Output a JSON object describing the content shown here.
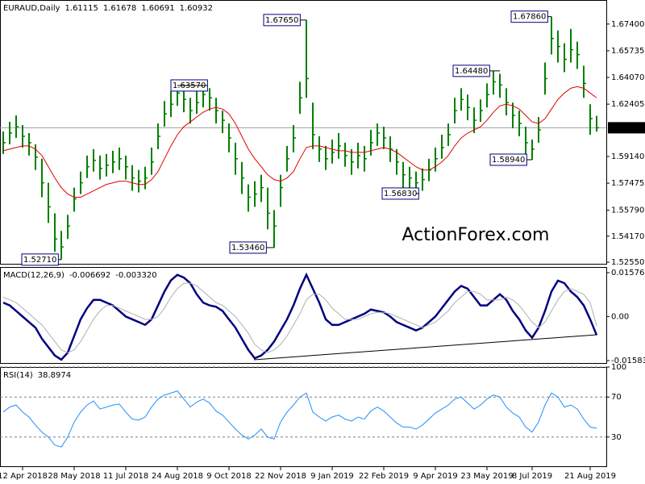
{
  "chart_data": [
    {
      "type": "ohlc",
      "title": "EURAUD,Daily",
      "last_ohlc": [
        1.61115,
        1.61678,
        1.60691,
        1.60932
      ],
      "watermark": "ActionForex.com",
      "color": "#008000",
      "ma_color": "#e00000",
      "ylim": [
        1.524,
        1.689
      ],
      "yticks": [
        {
          "value": 1.674,
          "label": "1.67400"
        },
        {
          "value": 1.65735,
          "label": "1.65735"
        },
        {
          "value": 1.6407,
          "label": "1.64070"
        },
        {
          "value": 1.62405,
          "label": "1.62405"
        },
        {
          "value": 1.5914,
          "label": "1.59140"
        },
        {
          "value": 1.57475,
          "label": "1.57475"
        },
        {
          "value": 1.5579,
          "label": "1.55790"
        },
        {
          "value": 1.5417,
          "label": "1.54170"
        },
        {
          "value": 1.5255,
          "label": "1.52550"
        }
      ],
      "last_price": {
        "value": 1.60932,
        "label": "1.60932"
      },
      "annotations": [
        {
          "value": 1.6765,
          "label": "1.67650"
        },
        {
          "value": 1.6786,
          "label": "1.67860"
        },
        {
          "value": 1.6357,
          "label": "1.63570"
        },
        {
          "value": 1.6448,
          "label": "1.64480"
        },
        {
          "value": 1.5894,
          "label": "1.58940"
        },
        {
          "value": 1.5683,
          "label": "1.56830"
        },
        {
          "value": 1.5346,
          "label": "1.53460"
        },
        {
          "value": 1.5271,
          "label": "1.52710"
        }
      ],
      "high": [
        1.607,
        1.613,
        1.617,
        1.611,
        1.606,
        1.599,
        1.59,
        1.575,
        1.556,
        1.545,
        1.555,
        1.572,
        1.582,
        1.592,
        1.596,
        1.592,
        1.593,
        1.595,
        1.597,
        1.592,
        1.586,
        1.583,
        1.585,
        1.597,
        1.612,
        1.626,
        1.632,
        1.6357,
        1.634,
        1.628,
        1.632,
        1.634,
        1.634,
        1.628,
        1.62,
        1.612,
        1.6,
        1.588,
        1.574,
        1.576,
        1.58,
        1.572,
        1.558,
        1.58,
        1.598,
        1.611,
        1.638,
        1.6765,
        1.625,
        1.604,
        1.598,
        1.602,
        1.606,
        1.6,
        1.596,
        1.6,
        1.598,
        1.608,
        1.612,
        1.61,
        1.604,
        1.596,
        1.588,
        1.585,
        1.582,
        1.584,
        1.59,
        1.597,
        1.605,
        1.612,
        1.628,
        1.634,
        1.63,
        1.622,
        1.627,
        1.637,
        1.6448,
        1.643,
        1.634,
        1.625,
        1.62,
        1.61,
        1.602,
        1.616,
        1.65,
        1.6786,
        1.67,
        1.662,
        1.671,
        1.663,
        1.648,
        1.624,
        1.61678
      ],
      "low": [
        1.593,
        1.599,
        1.603,
        1.597,
        1.592,
        1.583,
        1.566,
        1.55,
        1.532,
        1.5271,
        1.54,
        1.557,
        1.568,
        1.578,
        1.582,
        1.577,
        1.579,
        1.581,
        1.583,
        1.577,
        1.57,
        1.569,
        1.571,
        1.58,
        1.596,
        1.61,
        1.616,
        1.623,
        1.619,
        1.612,
        1.618,
        1.622,
        1.62,
        1.612,
        1.606,
        1.594,
        1.58,
        1.568,
        1.557,
        1.56,
        1.563,
        1.546,
        1.5346,
        1.56,
        1.582,
        1.594,
        1.618,
        1.628,
        1.596,
        1.588,
        1.583,
        1.587,
        1.59,
        1.585,
        1.58,
        1.584,
        1.582,
        1.592,
        1.598,
        1.596,
        1.588,
        1.58,
        1.572,
        1.57,
        1.5683,
        1.57,
        1.576,
        1.582,
        1.59,
        1.598,
        1.612,
        1.62,
        1.614,
        1.606,
        1.613,
        1.622,
        1.63,
        1.628,
        1.617,
        1.609,
        1.604,
        1.592,
        1.5894,
        1.6,
        1.63,
        1.655,
        1.65,
        1.644,
        1.65,
        1.646,
        1.628,
        1.605,
        1.60691
      ],
      "close": [
        1.6,
        1.606,
        1.61,
        1.604,
        1.6,
        1.591,
        1.575,
        1.56,
        1.54,
        1.535,
        1.548,
        1.565,
        1.575,
        1.585,
        1.589,
        1.584,
        1.586,
        1.588,
        1.59,
        1.585,
        1.578,
        1.576,
        1.578,
        1.588,
        1.604,
        1.618,
        1.624,
        1.631,
        1.627,
        1.62,
        1.625,
        1.63,
        1.628,
        1.62,
        1.614,
        1.603,
        1.59,
        1.578,
        1.566,
        1.568,
        1.572,
        1.556,
        1.548,
        1.572,
        1.59,
        1.603,
        1.628,
        1.64,
        1.605,
        1.596,
        1.59,
        1.594,
        1.598,
        1.592,
        1.588,
        1.592,
        1.59,
        1.6,
        1.606,
        1.603,
        1.596,
        1.588,
        1.58,
        1.578,
        1.575,
        1.577,
        1.583,
        1.59,
        1.597,
        1.605,
        1.62,
        1.627,
        1.622,
        1.614,
        1.62,
        1.63,
        1.638,
        1.636,
        1.625,
        1.617,
        1.612,
        1.6,
        1.596,
        1.608,
        1.64,
        1.665,
        1.66,
        1.652,
        1.658,
        1.655,
        1.637,
        1.615,
        1.60932
      ],
      "ma_values": [
        1.595,
        1.596,
        1.597,
        1.598,
        1.598,
        1.596,
        1.592,
        1.585,
        1.578,
        1.572,
        1.568,
        1.566,
        1.566,
        1.568,
        1.57,
        1.572,
        1.574,
        1.575,
        1.576,
        1.576,
        1.575,
        1.574,
        1.574,
        1.577,
        1.582,
        1.59,
        1.598,
        1.605,
        1.61,
        1.613,
        1.616,
        1.619,
        1.621,
        1.622,
        1.621,
        1.618,
        1.612,
        1.604,
        1.596,
        1.59,
        1.585,
        1.58,
        1.577,
        1.576,
        1.578,
        1.582,
        1.59,
        1.597,
        1.598,
        1.598,
        1.597,
        1.596,
        1.595,
        1.595,
        1.594,
        1.594,
        1.594,
        1.595,
        1.596,
        1.597,
        1.596,
        1.594,
        1.591,
        1.588,
        1.585,
        1.583,
        1.583,
        1.585,
        1.588,
        1.592,
        1.598,
        1.603,
        1.606,
        1.608,
        1.61,
        1.614,
        1.619,
        1.623,
        1.624,
        1.623,
        1.621,
        1.617,
        1.613,
        1.612,
        1.615,
        1.621,
        1.627,
        1.631,
        1.634,
        1.635,
        1.634,
        1.631,
        1.628
      ]
    },
    {
      "type": "line",
      "title": "MACD(12,26,9)",
      "last_values": [
        -0.006692,
        {
          "value": -0.00332,
          "label": "-0.003320"
        }
      ],
      "ylim": [
        -0.017,
        0.0178
      ],
      "yticks": [
        0.015762,
        {
          "value": 0,
          "label": "0.00"
        },
        -0.015834
      ],
      "series": [
        {
          "color": "#000080",
          "width": 2.5,
          "values": [
            0.005,
            0.004,
            0.002,
            0.0,
            -0.002,
            -0.004,
            -0.008,
            -0.011,
            -0.014,
            -0.0155,
            -0.013,
            -0.007,
            -0.001,
            0.003,
            0.006,
            0.006,
            0.005,
            0.004,
            0.002,
            0.0,
            -0.001,
            -0.002,
            -0.003,
            -0.001,
            0.004,
            0.009,
            0.013,
            0.015,
            0.014,
            0.012,
            0.008,
            0.005,
            0.004,
            0.0035,
            0.002,
            -0.001,
            -0.004,
            -0.008,
            -0.012,
            -0.015,
            -0.014,
            -0.012,
            -0.009,
            -0.005,
            -0.001,
            0.004,
            0.01,
            0.015,
            0.01,
            0.005,
            -0.001,
            -0.003,
            -0.003,
            -0.002,
            -0.001,
            0.0,
            0.001,
            0.0025,
            0.002,
            0.0015,
            0.0,
            -0.002,
            -0.003,
            -0.004,
            -0.005,
            -0.004,
            -0.002,
            0.0,
            0.003,
            0.006,
            0.009,
            0.011,
            0.01,
            0.007,
            0.004,
            0.004,
            0.006,
            0.008,
            0.006,
            0.002,
            -0.001,
            -0.005,
            -0.0076,
            -0.004,
            0.002,
            0.009,
            0.0129,
            0.012,
            0.009,
            0.007,
            0.004,
            -0.001,
            -0.006692
          ]
        },
        {
          "color": "#b0b0b0",
          "width": 1,
          "values": [
            0.007,
            0.006,
            0.005,
            0.003,
            0.001,
            -0.001,
            -0.003,
            -0.006,
            -0.009,
            -0.012,
            -0.013,
            -0.012,
            -0.009,
            -0.005,
            -0.001,
            0.002,
            0.004,
            0.004,
            0.003,
            0.002,
            0.001,
            0.0,
            -0.001,
            -0.001,
            0.0,
            0.003,
            0.007,
            0.01,
            0.012,
            0.012,
            0.011,
            0.009,
            0.007,
            0.005,
            0.004,
            0.002,
            0.0,
            -0.003,
            -0.006,
            -0.01,
            -0.012,
            -0.013,
            -0.012,
            -0.01,
            -0.007,
            -0.003,
            0.001,
            0.006,
            0.008,
            0.008,
            0.006,
            0.003,
            0.001,
            -0.001,
            -0.001,
            -0.001,
            0.0,
            0.001,
            0.0015,
            0.0015,
            0.001,
            0.0,
            -0.001,
            -0.002,
            -0.003,
            -0.004,
            -0.003,
            -0.002,
            0.0,
            0.002,
            0.005,
            0.007,
            0.009,
            0.009,
            0.008,
            0.006,
            0.006,
            0.006,
            0.007,
            0.006,
            0.004,
            0.001,
            -0.002,
            -0.004,
            -0.002,
            0.002,
            0.006,
            0.009,
            0.01,
            0.009,
            0.008,
            0.005,
            -0.00332
          ]
        }
      ]
    },
    {
      "type": "line",
      "title": "RSI(14)",
      "last_values": [
        38.8974
      ],
      "ylim": [
        0,
        100
      ],
      "yticks": [
        100,
        70,
        30
      ],
      "grid": "dashed",
      "categories": [
        null,
        null,
        null,
        "12 Apr 2018",
        null,
        null,
        null,
        null,
        null,
        null,
        null,
        "28 May 2018",
        null,
        null,
        null,
        null,
        null,
        null,
        null,
        "11 Jul 2018",
        null,
        null,
        null,
        null,
        null,
        null,
        null,
        "24 Aug 2018",
        null,
        null,
        null,
        null,
        null,
        null,
        null,
        "9 Oct 2018",
        null,
        null,
        null,
        null,
        null,
        null,
        null,
        "22 Nov 2018",
        null,
        null,
        null,
        null,
        null,
        null,
        null,
        "9 Jan 2019",
        null,
        null,
        null,
        null,
        null,
        null,
        null,
        "22 Feb 2019",
        null,
        null,
        null,
        null,
        null,
        null,
        null,
        "9 Apr 2019",
        null,
        null,
        null,
        null,
        null,
        null,
        null,
        "23 May 2019",
        null,
        null,
        null,
        null,
        null,
        null,
        "8 Jul 2019",
        null,
        null,
        null,
        null,
        null,
        null,
        null,
        null,
        "21 Aug 2019",
        null
      ],
      "series": [
        {
          "color": "#1e90ff",
          "width": 1,
          "values": [
            55,
            60,
            62,
            55,
            50,
            42,
            35,
            30,
            22,
            20,
            30,
            45,
            55,
            62,
            66,
            58,
            60,
            62,
            63,
            55,
            48,
            47,
            50,
            60,
            68,
            72,
            74,
            76,
            68,
            60,
            65,
            68,
            64,
            56,
            52,
            45,
            38,
            32,
            28,
            32,
            38,
            30,
            28,
            45,
            55,
            62,
            70,
            74,
            55,
            50,
            46,
            50,
            52,
            48,
            46,
            50,
            48,
            56,
            60,
            56,
            50,
            44,
            40,
            40,
            38,
            42,
            48,
            54,
            58,
            62,
            68,
            70,
            64,
            58,
            62,
            68,
            72,
            70,
            60,
            54,
            50,
            40,
            35,
            45,
            62,
            74,
            70,
            60,
            62,
            58,
            48,
            40,
            38.8974
          ]
        }
      ]
    }
  ]
}
